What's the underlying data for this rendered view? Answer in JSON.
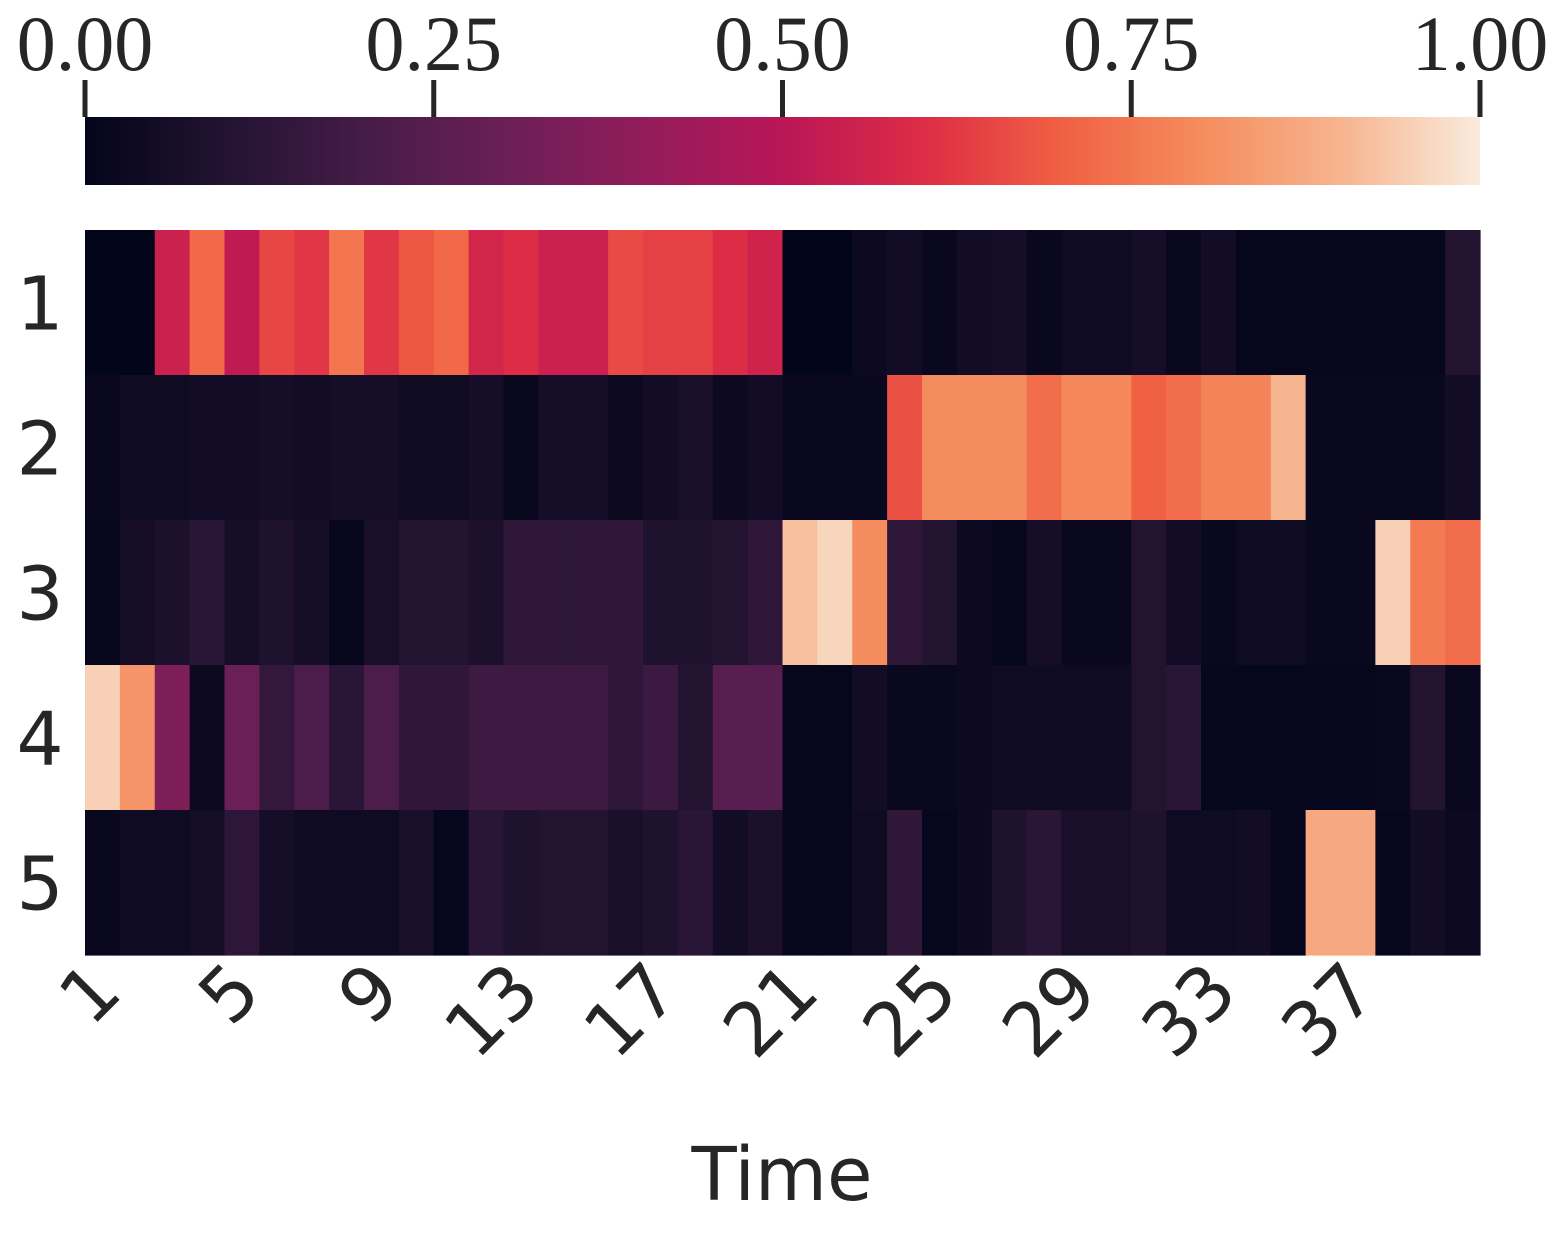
{
  "chart_data": {
    "type": "heatmap",
    "x_label": "Time",
    "categories": [
      "1",
      null,
      null,
      null,
      "5",
      null,
      null,
      null,
      "9",
      null,
      null,
      null,
      "13",
      null,
      null,
      null,
      "17",
      null,
      null,
      null,
      "21",
      null,
      null,
      null,
      "25",
      null,
      null,
      null,
      "29",
      null,
      null,
      null,
      "33",
      null,
      null,
      null,
      "37",
      null,
      null,
      null
    ],
    "y_categories": [
      "1",
      "2",
      "3",
      "4",
      "5"
    ],
    "values": [
      [
        0.0,
        0.0,
        0.55,
        0.72,
        0.52,
        0.65,
        0.62,
        0.75,
        0.62,
        0.68,
        0.72,
        0.57,
        0.6,
        0.55,
        0.55,
        0.66,
        0.64,
        0.64,
        0.6,
        0.56,
        0.0,
        0.0,
        0.03,
        0.05,
        0.02,
        0.05,
        0.06,
        0.02,
        0.04,
        0.04,
        0.06,
        0.02,
        0.05,
        0.01,
        0.01,
        0.01,
        0.01,
        0.01,
        0.01,
        0.1
      ],
      [
        0.02,
        0.04,
        0.04,
        0.05,
        0.05,
        0.06,
        0.05,
        0.06,
        0.06,
        0.04,
        0.04,
        0.06,
        0.02,
        0.06,
        0.06,
        0.03,
        0.05,
        0.07,
        0.03,
        0.05,
        0.02,
        0.02,
        0.02,
        0.67,
        0.8,
        0.8,
        0.8,
        0.73,
        0.79,
        0.79,
        0.7,
        0.73,
        0.78,
        0.78,
        0.9,
        0.02,
        0.02,
        0.02,
        0.02,
        0.05
      ],
      [
        0.01,
        0.06,
        0.08,
        0.12,
        0.06,
        0.09,
        0.06,
        0.01,
        0.07,
        0.1,
        0.1,
        0.08,
        0.13,
        0.13,
        0.13,
        0.14,
        0.09,
        0.09,
        0.1,
        0.13,
        0.92,
        0.96,
        0.8,
        0.13,
        0.1,
        0.03,
        0.01,
        0.06,
        0.02,
        0.02,
        0.1,
        0.05,
        0.02,
        0.04,
        0.04,
        0.02,
        0.02,
        0.95,
        0.76,
        0.73
      ],
      [
        0.95,
        0.82,
        0.35,
        0.03,
        0.3,
        0.15,
        0.22,
        0.12,
        0.22,
        0.14,
        0.14,
        0.18,
        0.18,
        0.18,
        0.18,
        0.13,
        0.17,
        0.1,
        0.25,
        0.25,
        0.01,
        0.01,
        0.05,
        0.02,
        0.02,
        0.03,
        0.04,
        0.04,
        0.04,
        0.04,
        0.1,
        0.12,
        0.01,
        0.01,
        0.01,
        0.01,
        0.01,
        0.02,
        0.1,
        0.02
      ],
      [
        0.02,
        0.04,
        0.04,
        0.06,
        0.13,
        0.06,
        0.04,
        0.04,
        0.04,
        0.07,
        0.01,
        0.12,
        0.09,
        0.1,
        0.1,
        0.07,
        0.09,
        0.12,
        0.05,
        0.08,
        0.01,
        0.01,
        0.04,
        0.14,
        0.01,
        0.03,
        0.09,
        0.12,
        0.07,
        0.07,
        0.09,
        0.04,
        0.04,
        0.05,
        0.01,
        0.87,
        0.87,
        0.01,
        0.05,
        0.03
      ]
    ],
    "zlim": [
      0,
      1
    ],
    "colorbar_ticks": [
      {
        "value": 0,
        "label": "0.00"
      },
      {
        "value": 0.25,
        "label": "0.25"
      },
      {
        "value": 0.5,
        "label": "0.50"
      },
      {
        "value": 0.75,
        "label": "0.75"
      },
      {
        "value": 1,
        "label": "1.00"
      }
    ],
    "colorscale": [
      "#03051a",
      "#221331",
      "#451c47",
      "#6a1f56",
      "#921c5b",
      "#b91657",
      "#dd2c45",
      "#f06043",
      "#f58c5e",
      "#f6b48e",
      "#faebdd"
    ]
  }
}
